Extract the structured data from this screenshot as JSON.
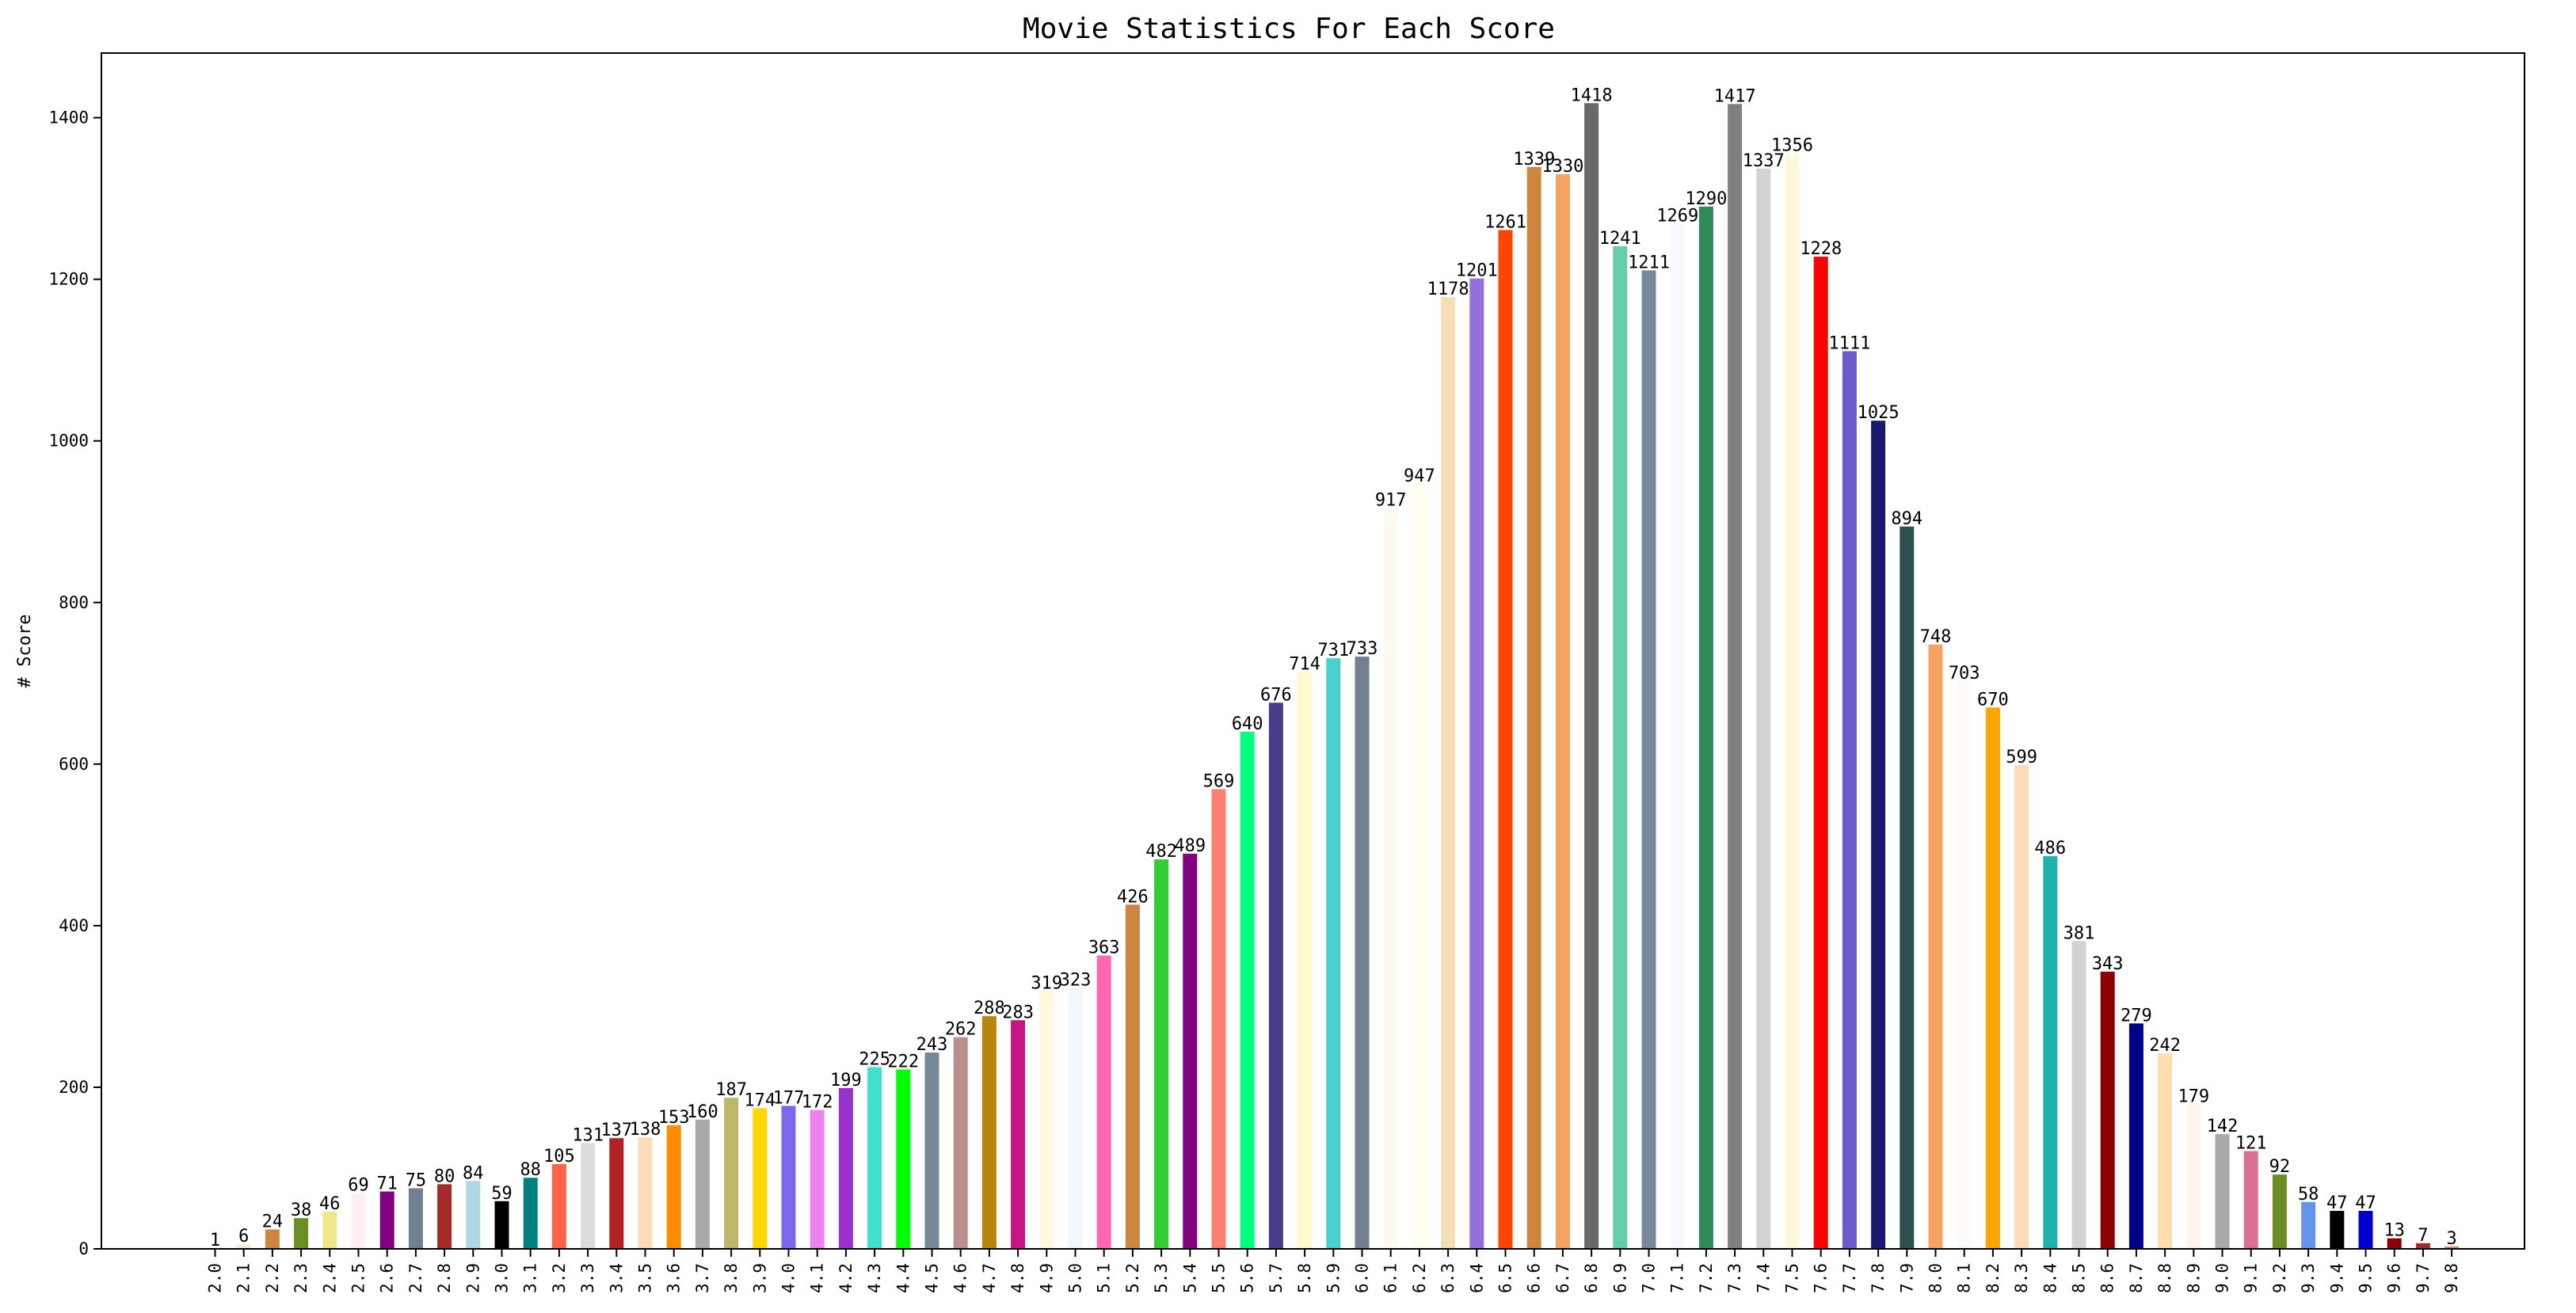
{
  "chart_data": {
    "type": "bar",
    "title": "Movie Statistics For Each Score",
    "xlabel": "",
    "ylabel": "# Score",
    "ylim": [
      0,
      1480
    ],
    "yticks": [
      0,
      200,
      400,
      600,
      800,
      1000,
      1200,
      1400
    ],
    "grid": false,
    "legend": "none",
    "categories": [
      "2.0",
      "2.1",
      "2.2",
      "2.3",
      "2.4",
      "2.5",
      "2.6",
      "2.7",
      "2.8",
      "2.9",
      "3.0",
      "3.1",
      "3.2",
      "3.3",
      "3.4",
      "3.5",
      "3.6",
      "3.7",
      "3.8",
      "3.9",
      "4.0",
      "4.1",
      "4.2",
      "4.3",
      "4.4",
      "4.5",
      "4.6",
      "4.7",
      "4.8",
      "4.9",
      "5.0",
      "5.1",
      "5.2",
      "5.3",
      "5.4",
      "5.5",
      "5.6",
      "5.7",
      "5.8",
      "5.9",
      "6.0",
      "6.1",
      "6.2",
      "6.3",
      "6.4",
      "6.5",
      "6.6",
      "6.7",
      "6.8",
      "6.9",
      "7.0",
      "7.1",
      "7.2",
      "7.3",
      "7.4",
      "7.5",
      "7.6",
      "7.7",
      "7.8",
      "7.9",
      "8.0",
      "8.1",
      "8.2",
      "8.3",
      "8.4",
      "8.5",
      "8.6",
      "8.7",
      "8.8",
      "8.9",
      "9.0",
      "9.1",
      "9.2",
      "9.3",
      "9.4",
      "9.5",
      "9.6",
      "9.7",
      "9.8"
    ],
    "values": [
      1,
      6,
      24,
      38,
      46,
      69,
      71,
      75,
      80,
      84,
      59,
      88,
      105,
      131,
      137,
      138,
      153,
      160,
      187,
      174,
      177,
      172,
      199,
      225,
      222,
      243,
      262,
      288,
      283,
      319,
      323,
      363,
      426,
      482,
      489,
      569,
      640,
      676,
      714,
      731,
      733,
      917,
      947,
      1178,
      1201,
      1261,
      1339,
      1330,
      1418,
      1241,
      1211,
      1269,
      1290,
      1417,
      1337,
      1356,
      1228,
      1111,
      1025,
      894,
      748,
      703,
      670,
      599,
      486,
      381,
      343,
      279,
      242,
      179,
      142,
      121,
      92,
      58,
      47,
      47,
      13,
      7,
      3
    ],
    "colors": [
      "#f0f8ff",
      "#faebd7",
      "#cd853f",
      "#6b8e23",
      "#f0e68c",
      "#fff0f5",
      "#800080",
      "#708090",
      "#a52a2a",
      "#add8e6",
      "#000000",
      "#008080",
      "#ff6347",
      "#dcdcdc",
      "#b22222",
      "#ffdab9",
      "#ff8c00",
      "#a9a9a9",
      "#bdb76b",
      "#ffd700",
      "#7b68ee",
      "#ee82ee",
      "#9932cc",
      "#40e0d0",
      "#00ff00",
      "#778899",
      "#bc8f8f",
      "#b8860b",
      "#c71585",
      "#fff8dc",
      "#f0f8ff",
      "#ff69b4",
      "#cd853f",
      "#32cd32",
      "#800080",
      "#fa8072",
      "#00ff7f",
      "#483d8b",
      "#fffacd",
      "#48d1cc",
      "#708090",
      "#fffaf0",
      "#fffff0",
      "#f5deb3",
      "#9370db",
      "#ff4500",
      "#cd853f",
      "#f4a460",
      "#696969",
      "#66cdaa",
      "#778899",
      "#f8f8ff",
      "#2e8b57",
      "#808080",
      "#d3d3d3",
      "#fff8dc",
      "#ff0000",
      "#6a5acd",
      "#191970",
      "#2f4f4f",
      "#f4a460",
      "#fffafa",
      "#ffa500",
      "#ffdab9",
      "#20b2aa",
      "#d3d3d3",
      "#8b0000",
      "#00008b",
      "#ffdead",
      "#fff5ee",
      "#a9a9a9",
      "#db7093",
      "#6b8e23",
      "#6495ed",
      "#000000",
      "#0000cd",
      "#8b0000",
      "#a52a2a",
      "#ff7f50"
    ]
  }
}
